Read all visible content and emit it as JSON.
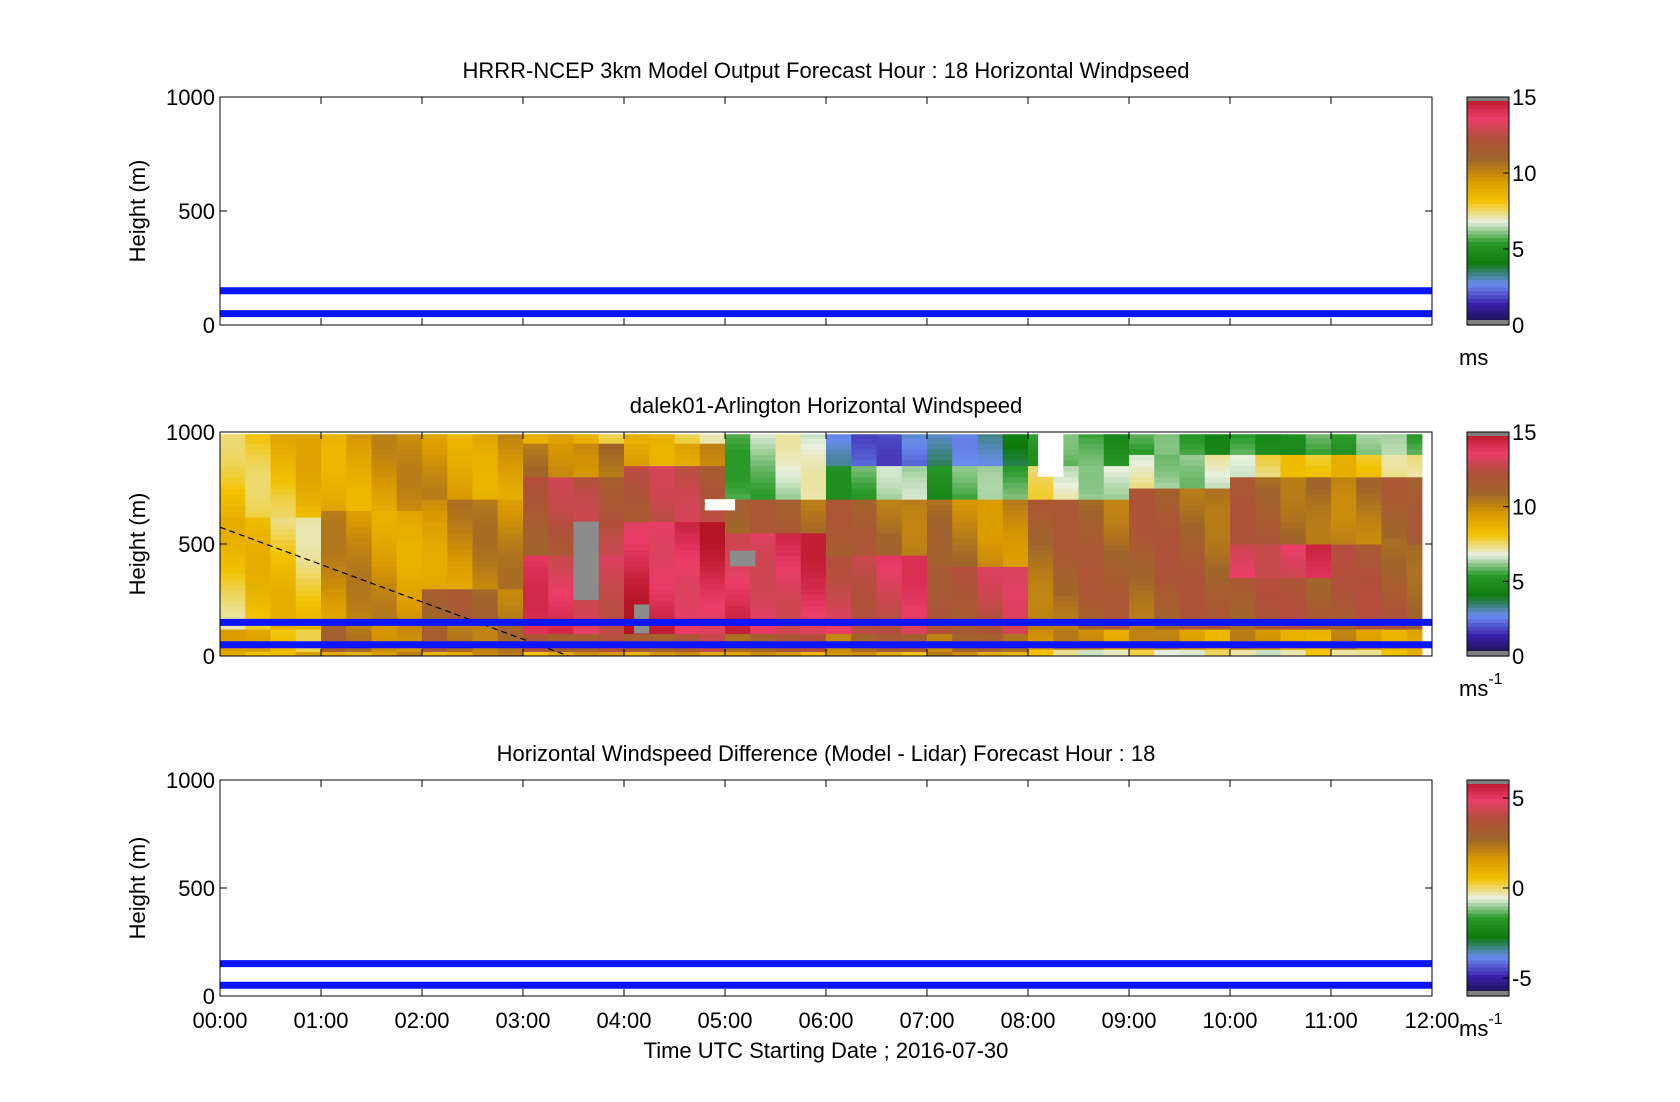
{
  "chart_data": [
    {
      "type": "heatmap",
      "title": "HRRR-NCEP 3km Model Output   Forecast Hour : 18 Horizontal Windpseed",
      "ylabel": "Height (m)",
      "xlim": [
        0,
        12
      ],
      "ylim": [
        0,
        1000
      ],
      "yticks": [
        "0",
        "500",
        "1000"
      ],
      "colorbar": {
        "label": "ms",
        "min": 0,
        "max": 15,
        "ticks": [
          "0",
          "5",
          "10",
          "15"
        ]
      },
      "reference_lines_m": [
        50,
        150
      ],
      "cells": []
    },
    {
      "type": "heatmap",
      "title": "dalek01-Arlington  Horizontal Windspeed",
      "ylabel": "Height (m)",
      "xlim": [
        0,
        12
      ],
      "ylim": [
        0,
        1000
      ],
      "yticks": [
        "0",
        "500",
        "1000"
      ],
      "colorbar": {
        "label": "ms",
        "label_sup": "-1",
        "min": 0,
        "max": 15,
        "ticks": [
          "0",
          "5",
          "10",
          "15"
        ]
      },
      "reference_lines_m": [
        50,
        150
      ],
      "hour_columns": [
        {
          "start_h": 0,
          "layers": [
            [
              0,
              20,
              9
            ],
            [
              20,
              120,
              8.6
            ],
            [
              120,
              620,
              8.0
            ],
            [
              620,
              1000,
              8.4
            ]
          ]
        },
        {
          "start_h": 1,
          "layers": [
            [
              0,
              20,
              9.5
            ],
            [
              20,
              150,
              10.5
            ],
            [
              150,
              650,
              9.6
            ],
            [
              650,
              1000,
              9.4
            ]
          ]
        },
        {
          "start_h": 2,
          "layers": [
            [
              0,
              20,
              9.5
            ],
            [
              20,
              150,
              11
            ],
            [
              150,
              300,
              10.8
            ],
            [
              300,
              700,
              9.8
            ],
            [
              700,
              1000,
              9.5
            ]
          ]
        },
        {
          "start_h": 3,
          "layers": [
            [
              0,
              20,
              9
            ],
            [
              20,
              100,
              12
            ],
            [
              100,
              450,
              13.4
            ],
            [
              450,
              800,
              12
            ],
            [
              800,
              950,
              10.5
            ],
            [
              950,
              1000,
              8.4
            ]
          ]
        },
        {
          "start_h": 4,
          "layers": [
            [
              0,
              20,
              9
            ],
            [
              20,
              100,
              12
            ],
            [
              100,
              600,
              14.2
            ],
            [
              600,
              850,
              12.2
            ],
            [
              850,
              950,
              9.5
            ],
            [
              950,
              1000,
              8
            ]
          ]
        },
        {
          "start_h": 5,
          "layers": [
            [
              0,
              20,
              9
            ],
            [
              20,
              100,
              11.5
            ],
            [
              100,
              550,
              13.8
            ],
            [
              550,
              700,
              11
            ],
            [
              700,
              1000,
              6.3
            ]
          ]
        },
        {
          "start_h": 6,
          "layers": [
            [
              0,
              20,
              9
            ],
            [
              20,
              100,
              10.8
            ],
            [
              100,
              450,
              13.2
            ],
            [
              450,
              700,
              11
            ],
            [
              700,
              850,
              5.8
            ],
            [
              850,
              1000,
              2.6
            ]
          ]
        },
        {
          "start_h": 7,
          "layers": [
            [
              0,
              20,
              9.5
            ],
            [
              20,
              100,
              10.5
            ],
            [
              100,
              400,
              12.5
            ],
            [
              400,
              700,
              10.3
            ],
            [
              700,
              850,
              5.5
            ],
            [
              850,
              1000,
              3.5
            ]
          ]
        },
        {
          "start_h": 8,
          "layers": [
            [
              0,
              30,
              7.5
            ],
            [
              30,
              120,
              9.5
            ],
            [
              120,
              700,
              11
            ],
            [
              700,
              850,
              7
            ],
            [
              850,
              1000,
              5.2
            ]
          ]
        },
        {
          "start_h": 9,
          "layers": [
            [
              0,
              30,
              7.5
            ],
            [
              30,
              120,
              9.4
            ],
            [
              120,
              750,
              11.2
            ],
            [
              750,
              900,
              6.8
            ],
            [
              900,
              1000,
              5.2
            ]
          ]
        },
        {
          "start_h": 10,
          "layers": [
            [
              0,
              30,
              7.5
            ],
            [
              30,
              120,
              9.4
            ],
            [
              120,
              350,
              11.5
            ],
            [
              350,
              500,
              13.6
            ],
            [
              500,
              800,
              11.2
            ],
            [
              800,
              900,
              7.5
            ],
            [
              900,
              1000,
              5.5
            ]
          ]
        },
        {
          "start_h": 11,
          "layers": [
            [
              0,
              30,
              8
            ],
            [
              30,
              120,
              9.5
            ],
            [
              120,
              500,
              11.5
            ],
            [
              500,
              800,
              10.8
            ],
            [
              800,
              900,
              8
            ],
            [
              900,
              1000,
              5.6
            ]
          ]
        }
      ],
      "cells": [
        {
          "x0": 3.5,
          "x1": 3.75,
          "y0": 250,
          "y1": 600,
          "missing": true
        },
        {
          "x0": 4.1,
          "x1": 4.25,
          "y0": 100,
          "y1": 230,
          "missing": true
        },
        {
          "x0": 5.05,
          "x1": 5.3,
          "y0": 400,
          "y1": 470,
          "missing": true
        },
        {
          "x0": 4.8,
          "x1": 5.1,
          "y0": 650,
          "y1": 700,
          "missing": true,
          "white": true
        },
        {
          "x0": 8.1,
          "x1": 8.35,
          "y0": 800,
          "y1": 1000,
          "missing": true,
          "white": true
        }
      ],
      "dashed_line": {
        "x": [
          0,
          3.45
        ],
        "y": [
          575,
          0
        ]
      }
    },
    {
      "type": "heatmap",
      "title": "Horizontal Windspeed Difference (Model - Lidar) Forecast Hour : 18",
      "xlabel": "Time UTC  Starting Date ; 2016-07-30",
      "ylabel": "Height (m)",
      "xlim": [
        0,
        12
      ],
      "ylim": [
        0,
        1000
      ],
      "xticks": [
        "00:00",
        "01:00",
        "02:00",
        "03:00",
        "04:00",
        "05:00",
        "06:00",
        "07:00",
        "08:00",
        "09:00",
        "10:00",
        "11:00",
        "12:00"
      ],
      "yticks": [
        "0",
        "500",
        "1000"
      ],
      "colorbar": {
        "label": "ms",
        "label_sup": "-1",
        "min": -6,
        "max": 6,
        "ticks": [
          "-5",
          "0",
          "5"
        ]
      },
      "reference_lines_m": [
        50,
        150
      ],
      "cells": []
    }
  ],
  "colors": {
    "reference_line": "#0a14ff",
    "missing": "#8c8c8c",
    "colormap": [
      "#161040",
      "#3a1ea8",
      "#6a8cf0",
      "#0e7a0e",
      "#2a9a2a",
      "#e8f0e0",
      "#f2c200",
      "#d89a00",
      "#a0652a",
      "#b0503a",
      "#ec3c6a",
      "#b41424"
    ]
  }
}
